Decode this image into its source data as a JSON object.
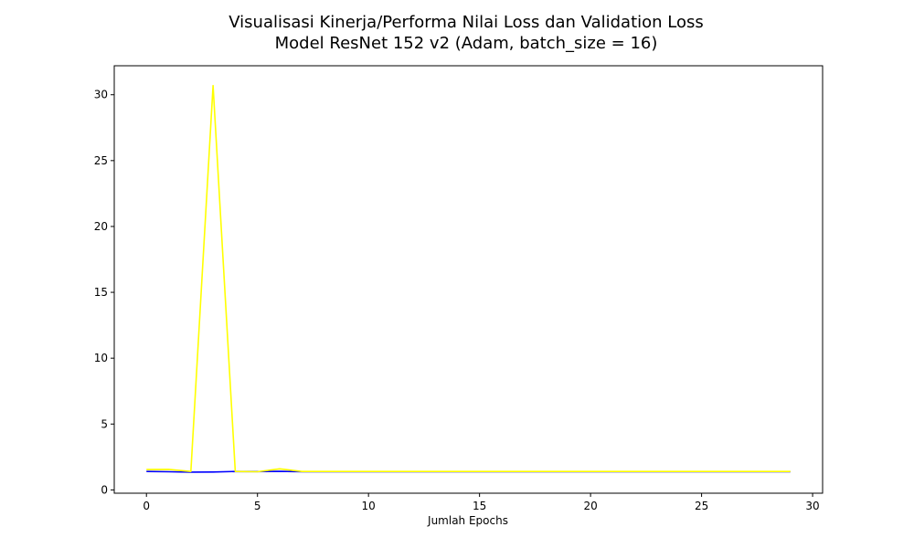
{
  "chart_data": {
    "type": "line",
    "title_line1": "Visualisasi Kinerja/Performa Nilai Loss dan Validation Loss",
    "title_line2": "Model ResNet 152 v2 (Adam, batch_size = 16)",
    "xlabel": "Jumlah Epochs",
    "ylabel": "",
    "xlim": [
      -1.45,
      30.45
    ],
    "ylim": [
      -0.25,
      32.2
    ],
    "xticks": [
      0,
      5,
      10,
      15,
      20,
      25,
      30
    ],
    "yticks": [
      0,
      5,
      10,
      15,
      20,
      25,
      30
    ],
    "grid": false,
    "legend": "none",
    "x": [
      0,
      1,
      2,
      3,
      4,
      5,
      6,
      7,
      8,
      9,
      10,
      11,
      12,
      13,
      14,
      15,
      16,
      17,
      18,
      19,
      20,
      21,
      22,
      23,
      24,
      25,
      26,
      27,
      28,
      29
    ],
    "series": [
      {
        "color": "#0000ff",
        "values": [
          1.4,
          1.38,
          1.35,
          1.36,
          1.4,
          1.39,
          1.41,
          1.38,
          1.38,
          1.38,
          1.38,
          1.38,
          1.38,
          1.38,
          1.38,
          1.38,
          1.38,
          1.38,
          1.38,
          1.38,
          1.38,
          1.38,
          1.38,
          1.38,
          1.38,
          1.38,
          1.38,
          1.38,
          1.38,
          1.38
        ]
      },
      {
        "color": "#ffff00",
        "values": [
          1.55,
          1.56,
          1.4,
          30.7,
          1.4,
          1.38,
          1.6,
          1.4,
          1.4,
          1.4,
          1.4,
          1.4,
          1.4,
          1.4,
          1.4,
          1.4,
          1.4,
          1.4,
          1.4,
          1.4,
          1.4,
          1.4,
          1.4,
          1.4,
          1.4,
          1.4,
          1.4,
          1.4,
          1.4,
          1.4
        ]
      }
    ]
  }
}
